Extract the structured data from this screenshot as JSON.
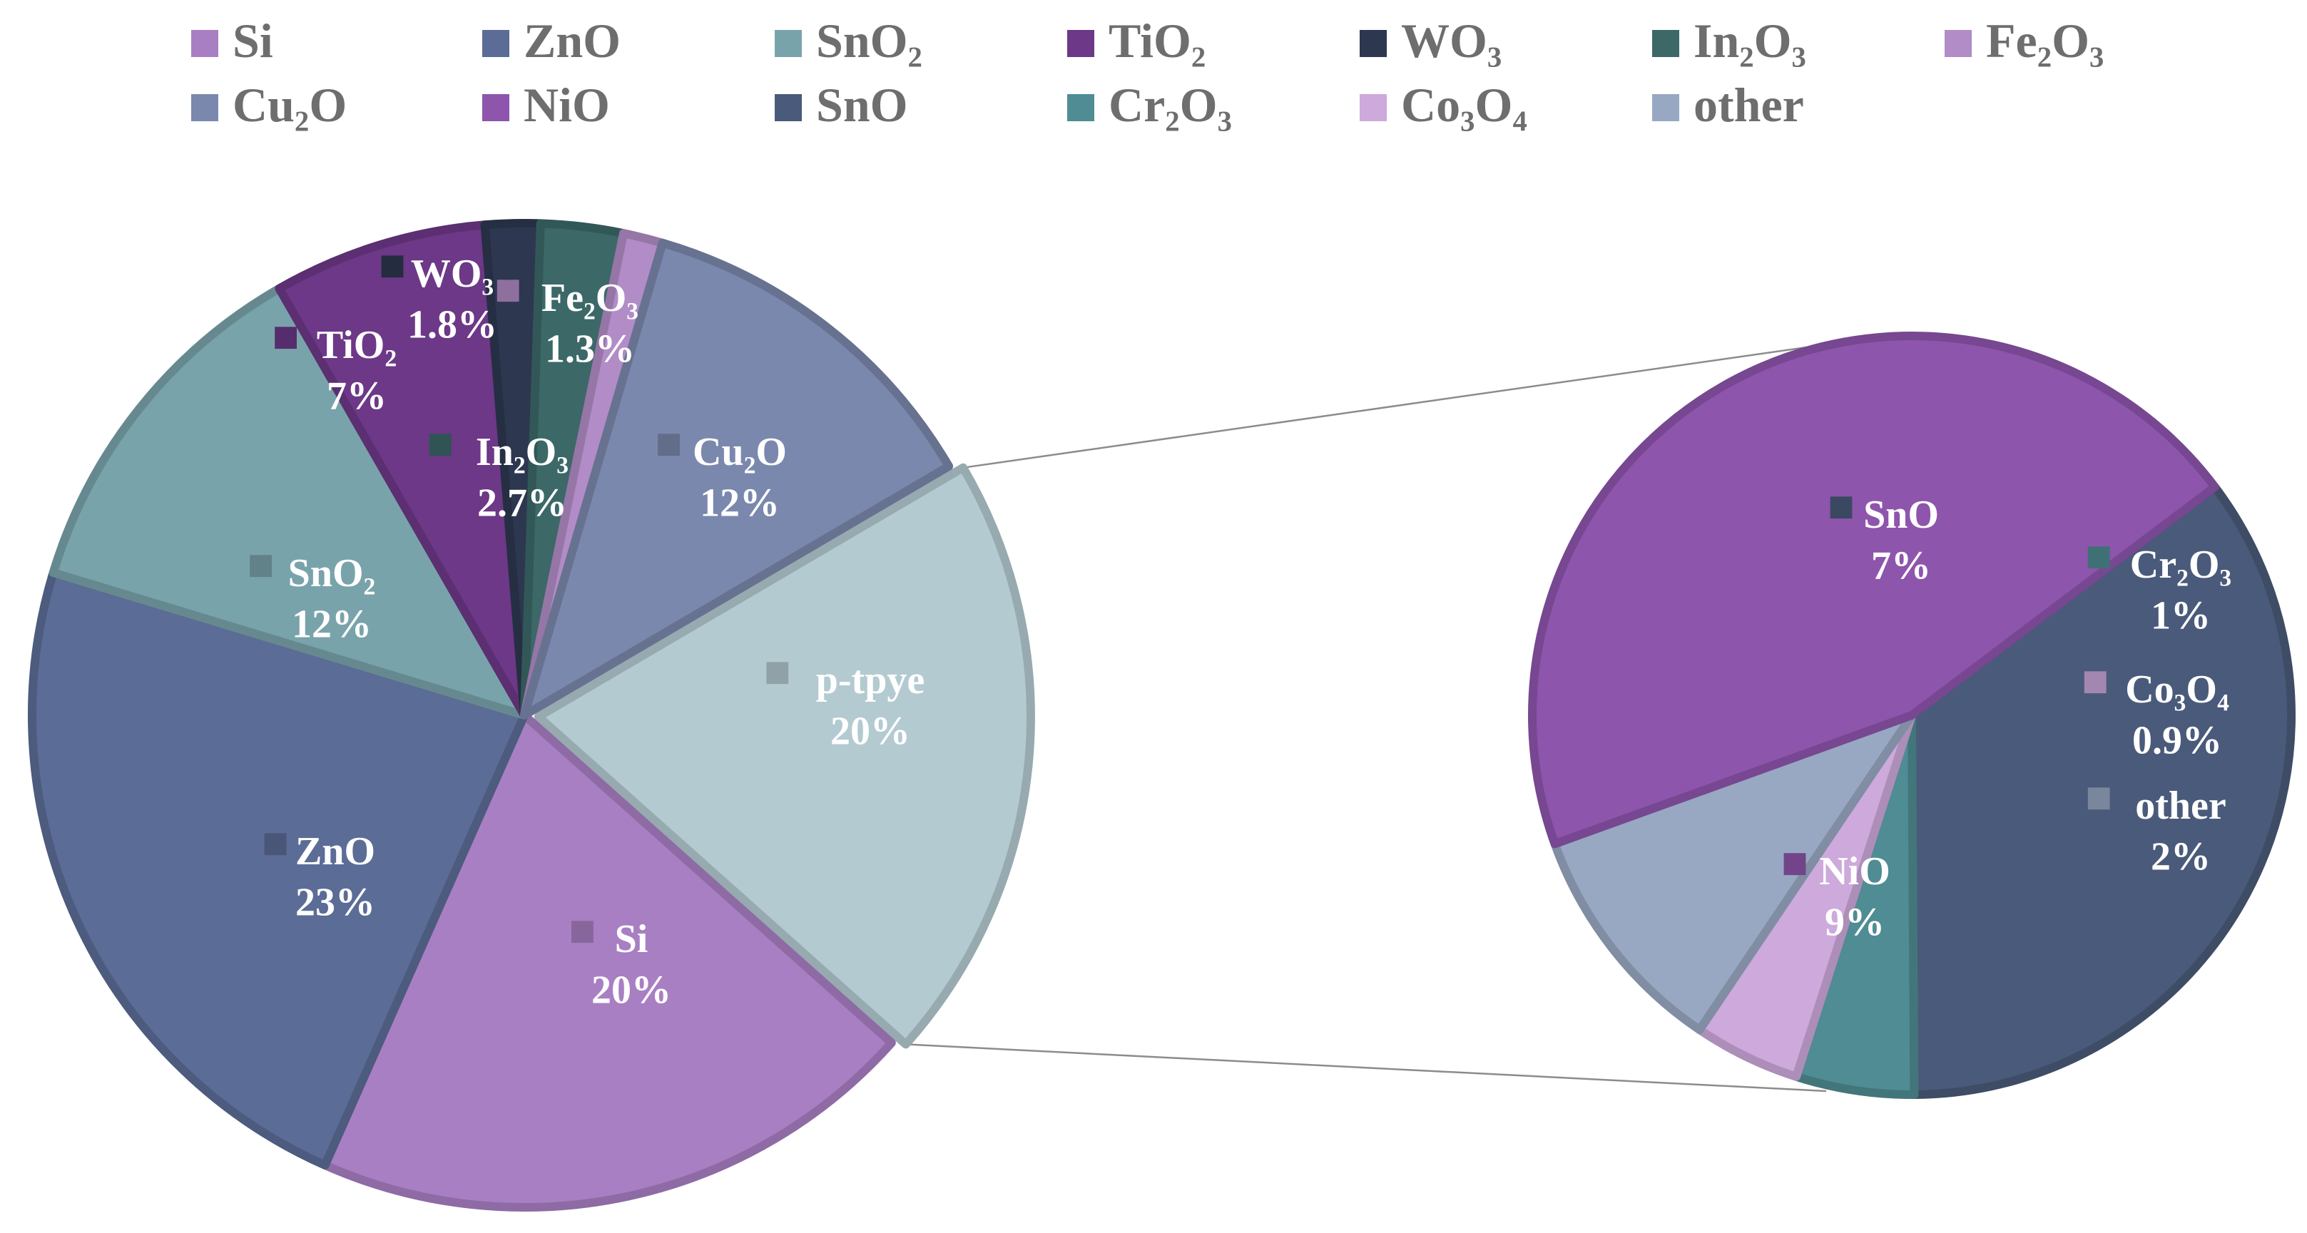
{
  "chart_data": {
    "type": "pie",
    "subtype": "pie-of-pie",
    "title": "",
    "legend_position": "top",
    "legend": [
      {
        "key": "Si",
        "label": "Si",
        "color": "#a97fc3"
      },
      {
        "key": "ZnO",
        "label": "ZnO",
        "color": "#5b6c96"
      },
      {
        "key": "SnO2",
        "label": "SnO₂",
        "color": "#79a3ab"
      },
      {
        "key": "TiO2",
        "label": "TiO₂",
        "color": "#6c3887"
      },
      {
        "key": "WO3",
        "label": "WO₃",
        "color": "#2d3750"
      },
      {
        "key": "In2O3",
        "label": "In₂O₃",
        "color": "#3c6868"
      },
      {
        "key": "Fe2O3",
        "label": "Fe₂O₃",
        "color": "#b18cc7"
      },
      {
        "key": "Cu2O",
        "label": "Cu₂O",
        "color": "#7b88ad"
      },
      {
        "key": "NiO",
        "label": "NiO",
        "color": "#8e55ad"
      },
      {
        "key": "SnO",
        "label": "SnO",
        "color": "#4a5a7a"
      },
      {
        "key": "Cr2O3",
        "label": "Cr₂O₃",
        "color": "#4f8c93"
      },
      {
        "key": "Co3O4",
        "label": "Co₃O₄",
        "color": "#cda9dc"
      },
      {
        "key": "other",
        "label": "other",
        "color": "#98a8c2"
      }
    ],
    "main_pie": [
      {
        "key": "p-type",
        "label": "p-tpye",
        "value": 20,
        "value_label": "20%",
        "color": "#b4cad1",
        "text_color": "#ffffff"
      },
      {
        "key": "Si",
        "label": "Si",
        "value": 20,
        "value_label": "20%",
        "color": "#a97fc3",
        "text_color": "#ffffff"
      },
      {
        "key": "ZnO",
        "label": "ZnO",
        "value": 23,
        "value_label": "23%",
        "color": "#5b6c96",
        "text_color": "#ffffff"
      },
      {
        "key": "SnO2",
        "label": "SnO₂",
        "value": 12,
        "value_label": "12%",
        "color": "#79a3ab",
        "text_color": "#ffffff"
      },
      {
        "key": "TiO2",
        "label": "TiO₂",
        "value": 7,
        "value_label": "7%",
        "color": "#6c3887",
        "text_color": "#ffffff"
      },
      {
        "key": "WO3",
        "label": "WO₃",
        "value": 1.8,
        "value_label": "1.8%",
        "color": "#2d3750",
        "text_color": "#ffffff"
      },
      {
        "key": "In2O3",
        "label": "In₂O₃",
        "value": 2.7,
        "value_label": "2.7%",
        "color": "#3c6868",
        "text_color": "#ffffff"
      },
      {
        "key": "Fe2O3",
        "label": "Fe₂O₃",
        "value": 1.3,
        "value_label": "1.3%",
        "color": "#b18cc7",
        "text_color": "#ffffff"
      },
      {
        "key": "Cu2O",
        "label": "Cu₂O",
        "value": 12,
        "value_label": "12%",
        "color": "#7b88ad",
        "text_color": "#ffffff"
      }
    ],
    "secondary_pie": [
      {
        "key": "SnO",
        "label": "SnO",
        "value": 7,
        "value_label": "7%",
        "color": "#4a5a7a",
        "text_color": "#ffffff"
      },
      {
        "key": "Cr2O3",
        "label": "Cr₂O₃",
        "value": 1,
        "value_label": "1%",
        "color": "#4f8c93",
        "text_color": "#ffffff"
      },
      {
        "key": "Co3O4",
        "label": "Co₃O₄",
        "value": 0.9,
        "value_label": "0.9%",
        "color": "#cda9dc",
        "text_color": "#ffffff"
      },
      {
        "key": "other",
        "label": "other",
        "value": 2,
        "value_label": "2%",
        "color": "#98a8c2",
        "text_color": "#ffffff"
      },
      {
        "key": "NiO",
        "label": "NiO",
        "value": 9,
        "value_label": "9%",
        "color": "#8e55ad",
        "text_color": "#ffffff"
      }
    ]
  }
}
